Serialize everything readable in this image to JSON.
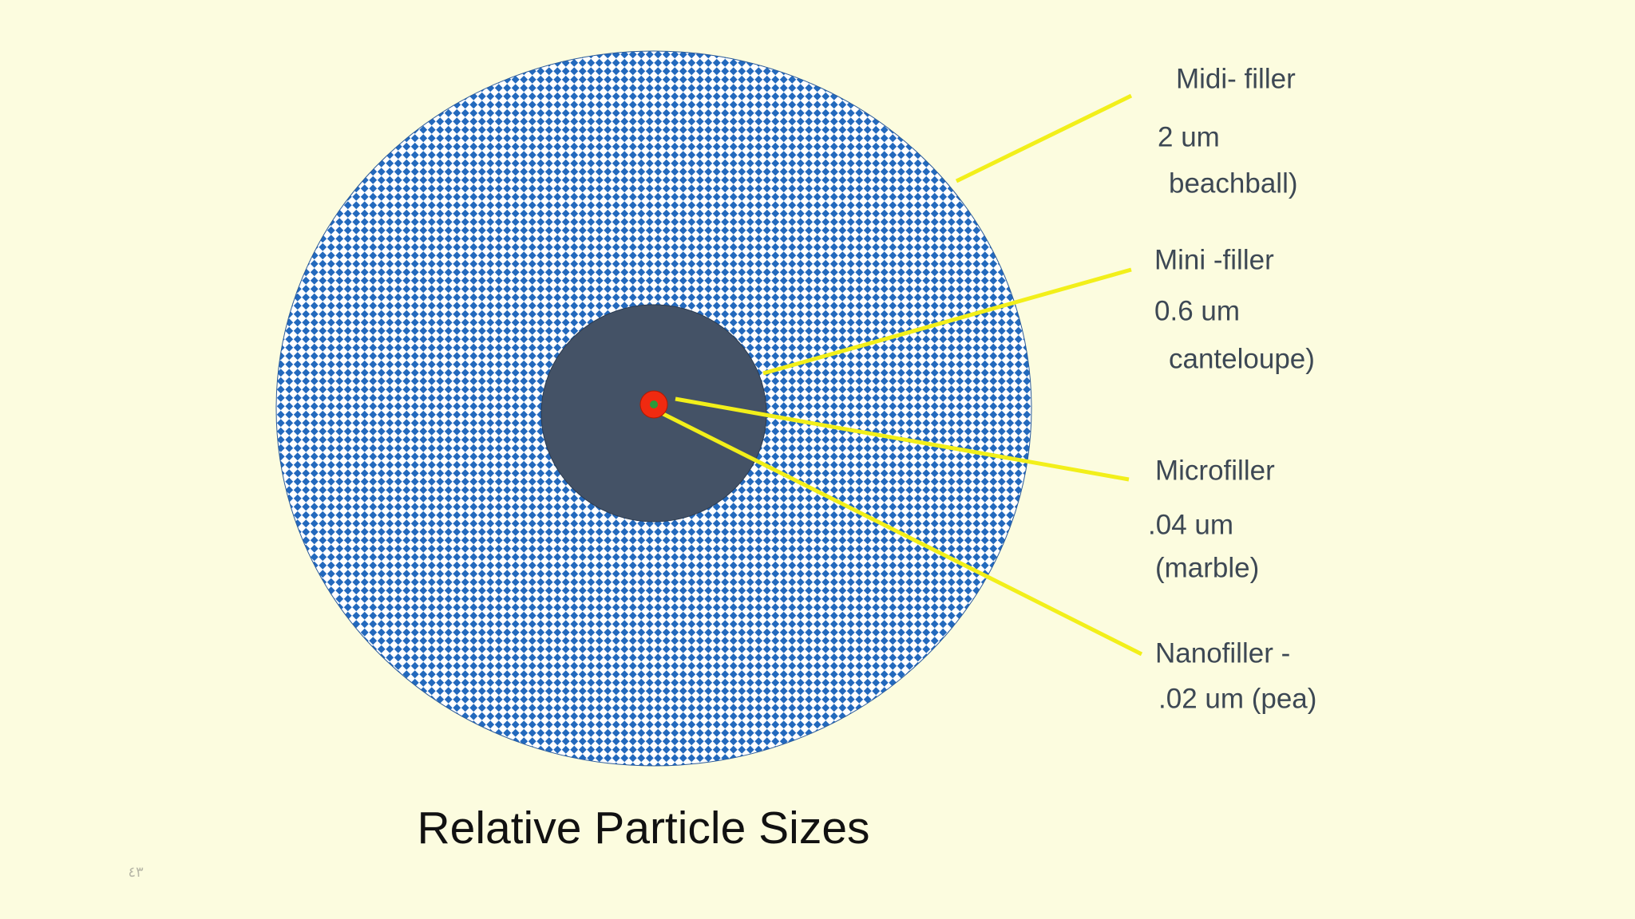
{
  "slide": {
    "title": "Relative Particle Sizes",
    "page_number": "٤٣",
    "labels": [
      {
        "lines": [
          "Midi- filler",
          "2 um",
          "beachball)"
        ]
      },
      {
        "lines": [
          "Mini -filler",
          "0.6 um",
          "canteloupe)"
        ]
      },
      {
        "lines": [
          "Microfiller",
          ".04 um",
          "(marble)"
        ]
      },
      {
        "lines": [
          "Nanofiller -",
          ".02 um (pea)"
        ]
      }
    ]
  }
}
